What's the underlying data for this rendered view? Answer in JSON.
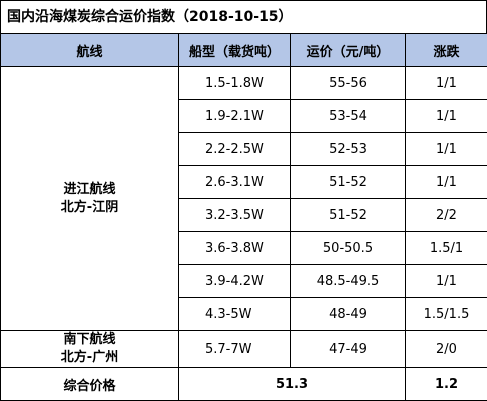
{
  "title": "国内沿海煤炭综合运价指数（2018-10-15）",
  "table": {
    "headers": [
      "航线",
      "船型（载货吨）",
      "运价（元/吨）",
      "涨跌"
    ],
    "groups": [
      {
        "route": [
          "进江航线",
          "北方-江阴"
        ],
        "rows": [
          [
            "1.5-1.8W",
            "55-56",
            "1/1"
          ],
          [
            "1.9-2.1W",
            "53-54",
            "1/1"
          ],
          [
            "2.2-2.5W",
            "52-53",
            "1/1"
          ],
          [
            "2.6-3.1W",
            "51-52",
            "1/1"
          ],
          [
            "3.2-3.5W",
            "51-52",
            "2/2"
          ],
          [
            "3.6-3.8W",
            "50-50.5",
            "1.5/1"
          ],
          [
            "3.9-4.2W",
            "48.5-49.5",
            "1/1"
          ],
          [
            "4.3-5W",
            "48-49",
            "1.5/1.5"
          ]
        ]
      },
      {
        "route": [
          "南下航线",
          "北方-广州"
        ],
        "rows": [
          [
            "5.7-7W",
            "47-49",
            "2/0"
          ]
        ]
      }
    ],
    "summary": {
      "label": "综合价格",
      "price": "51.3",
      "change": "1.2"
    }
  }
}
